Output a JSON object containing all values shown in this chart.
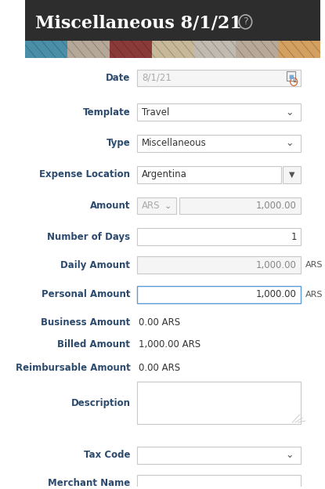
{
  "title": "Miscellaneous 8/1/21",
  "header_bg": "#2d2d2d",
  "header_text_color": "#ffffff",
  "header_font_size": 16,
  "banner_colors": [
    "#4a8fa8",
    "#b5a898",
    "#8b3a3a",
    "#c8b89a",
    "#c0bab0",
    "#b8a898",
    "#d4a060"
  ],
  "body_bg": "#ffffff",
  "field_label_color": "#2c4a6e",
  "field_value_color": "#555555",
  "input_bg": "#f5f5f5",
  "input_bg_white": "#ffffff",
  "input_border": "#c8c8c8",
  "input_border_blue": "#5b9bd5",
  "dropdown_arrow_color": "#555555",
  "ars_color": "#aaaaaa",
  "amount_color": "#888888",
  "orange_color": "#c8602a",
  "fields": [
    {
      "label": "Date",
      "value": "8/1/21",
      "type": "input_gray",
      "has_icon": true
    },
    {
      "label": "Template",
      "value": "Travel",
      "type": "dropdown_white"
    },
    {
      "label": "Type",
      "value": "Miscellaneous",
      "type": "dropdown_white"
    },
    {
      "label": "Expense Location",
      "value": "Argentina",
      "type": "dropdown_split"
    },
    {
      "label": "Amount",
      "value": "1,000.00",
      "type": "amount_split",
      "currency": "ARS"
    },
    {
      "label": "Number of Days",
      "value": "1",
      "type": "input_white_right"
    },
    {
      "label": "Daily Amount",
      "value": "1,000.00",
      "type": "input_gray_right",
      "suffix": "ARS"
    },
    {
      "label": "Personal Amount",
      "value": "1,000.00",
      "type": "input_white_right_blue",
      "suffix": "ARS"
    },
    {
      "label": "Business Amount",
      "value": "0.00 ARS",
      "type": "text"
    },
    {
      "label": "Billed Amount",
      "value": "1,000.00 ARS",
      "type": "text"
    },
    {
      "label": "Reimbursable Amount",
      "value": "0.00 ARS",
      "type": "text"
    },
    {
      "label": "Description",
      "value": "",
      "type": "textarea"
    },
    {
      "label": "Tax Code",
      "value": "",
      "type": "dropdown_white"
    },
    {
      "label": "Merchant Name",
      "value": "",
      "type": "input_white"
    }
  ]
}
